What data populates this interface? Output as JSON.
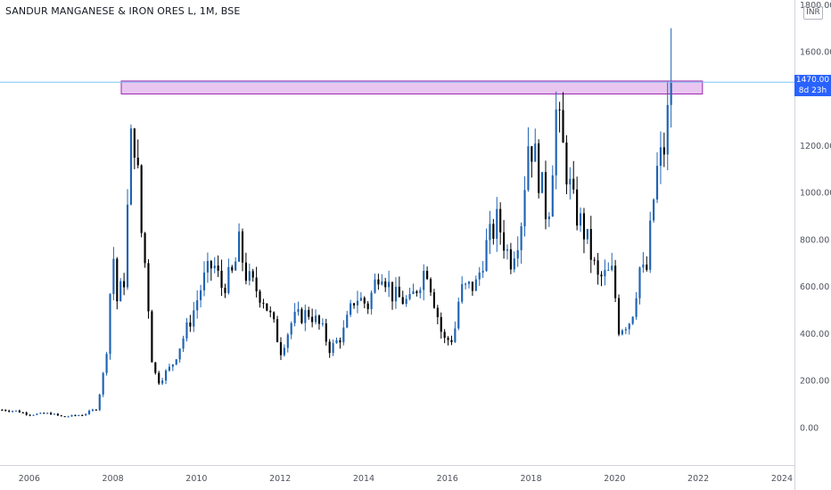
{
  "header": {
    "symbol_title": "SANDUR MANGANESE & IRON ORES L, 1M, BSE",
    "currency": "INR"
  },
  "price_axis": {
    "ticks": [
      "1800.00",
      "1600.00",
      "1200.00",
      "1000.00",
      "800.00",
      "600.00",
      "400.00",
      "200.00",
      "0.00"
    ],
    "last_price_label": "1470.00",
    "countdown_label": "8d 23h"
  },
  "time_axis": {
    "ticks": [
      "2006",
      "2008",
      "2010",
      "2012",
      "2014",
      "2016",
      "2018",
      "2020",
      "2022",
      "2024"
    ]
  },
  "colors": {
    "up": "#1e63b4",
    "down": "#000000",
    "zone_fill": "#e9c6f0",
    "zone_border": "#9c27b0",
    "last_price_line": "#7ec3f2",
    "tag_bg": "#2962ff",
    "grid_axis": "#e0e3eb"
  },
  "chart_data": {
    "type": "candlestick",
    "interval": "1M",
    "x_range": [
      2005.3,
      2024.3
    ],
    "ylim": [
      -160,
      1820
    ],
    "last_price": 1470,
    "resistance_zone": {
      "x_start": 2008.2,
      "x_end": 2022.1,
      "y_low": 1420,
      "y_high": 1475
    },
    "anchors": [
      [
        2005.35,
        75
      ],
      [
        2005.7,
        70
      ],
      [
        2006.0,
        55
      ],
      [
        2006.5,
        60
      ],
      [
        2006.8,
        45
      ],
      [
        2007.3,
        55
      ],
      [
        2007.6,
        80
      ],
      [
        2007.75,
        200
      ],
      [
        2007.85,
        340
      ],
      [
        2008.0,
        760
      ],
      [
        2008.1,
        540
      ],
      [
        2008.3,
        650
      ],
      [
        2008.4,
        1200
      ],
      [
        2008.55,
        1240
      ],
      [
        2008.65,
        880
      ],
      [
        2008.8,
        650
      ],
      [
        2008.95,
        250
      ],
      [
        2009.1,
        200
      ],
      [
        2009.4,
        260
      ],
      [
        2009.7,
        390
      ],
      [
        2009.9,
        480
      ],
      [
        2010.15,
        620
      ],
      [
        2010.4,
        700
      ],
      [
        2010.6,
        600
      ],
      [
        2010.9,
        660
      ],
      [
        2011.0,
        790
      ],
      [
        2011.2,
        640
      ],
      [
        2011.6,
        550
      ],
      [
        2011.9,
        410
      ],
      [
        2012.0,
        320
      ],
      [
        2012.3,
        460
      ],
      [
        2012.7,
        490
      ],
      [
        2013.0,
        420
      ],
      [
        2013.2,
        330
      ],
      [
        2013.5,
        400
      ],
      [
        2013.8,
        560
      ],
      [
        2014.1,
        520
      ],
      [
        2014.4,
        690
      ],
      [
        2014.7,
        560
      ],
      [
        2015.1,
        530
      ],
      [
        2015.5,
        690
      ],
      [
        2015.9,
        370
      ],
      [
        2016.15,
        380
      ],
      [
        2016.3,
        580
      ],
      [
        2016.7,
        610
      ],
      [
        2016.9,
        760
      ],
      [
        2017.2,
        880
      ],
      [
        2017.5,
        710
      ],
      [
        2017.75,
        860
      ],
      [
        2017.95,
        1250
      ],
      [
        2018.2,
        1070
      ],
      [
        2018.4,
        880
      ],
      [
        2018.6,
        1340
      ],
      [
        2018.8,
        1150
      ],
      [
        2019.0,
        950
      ],
      [
        2019.3,
        820
      ],
      [
        2019.6,
        630
      ],
      [
        2019.95,
        660
      ],
      [
        2020.1,
        420
      ],
      [
        2020.4,
        460
      ],
      [
        2020.6,
        680
      ],
      [
        2020.75,
        640
      ],
      [
        2020.9,
        920
      ],
      [
        2021.0,
        1080
      ],
      [
        2021.2,
        1200
      ],
      [
        2021.35,
        1470
      ]
    ]
  }
}
